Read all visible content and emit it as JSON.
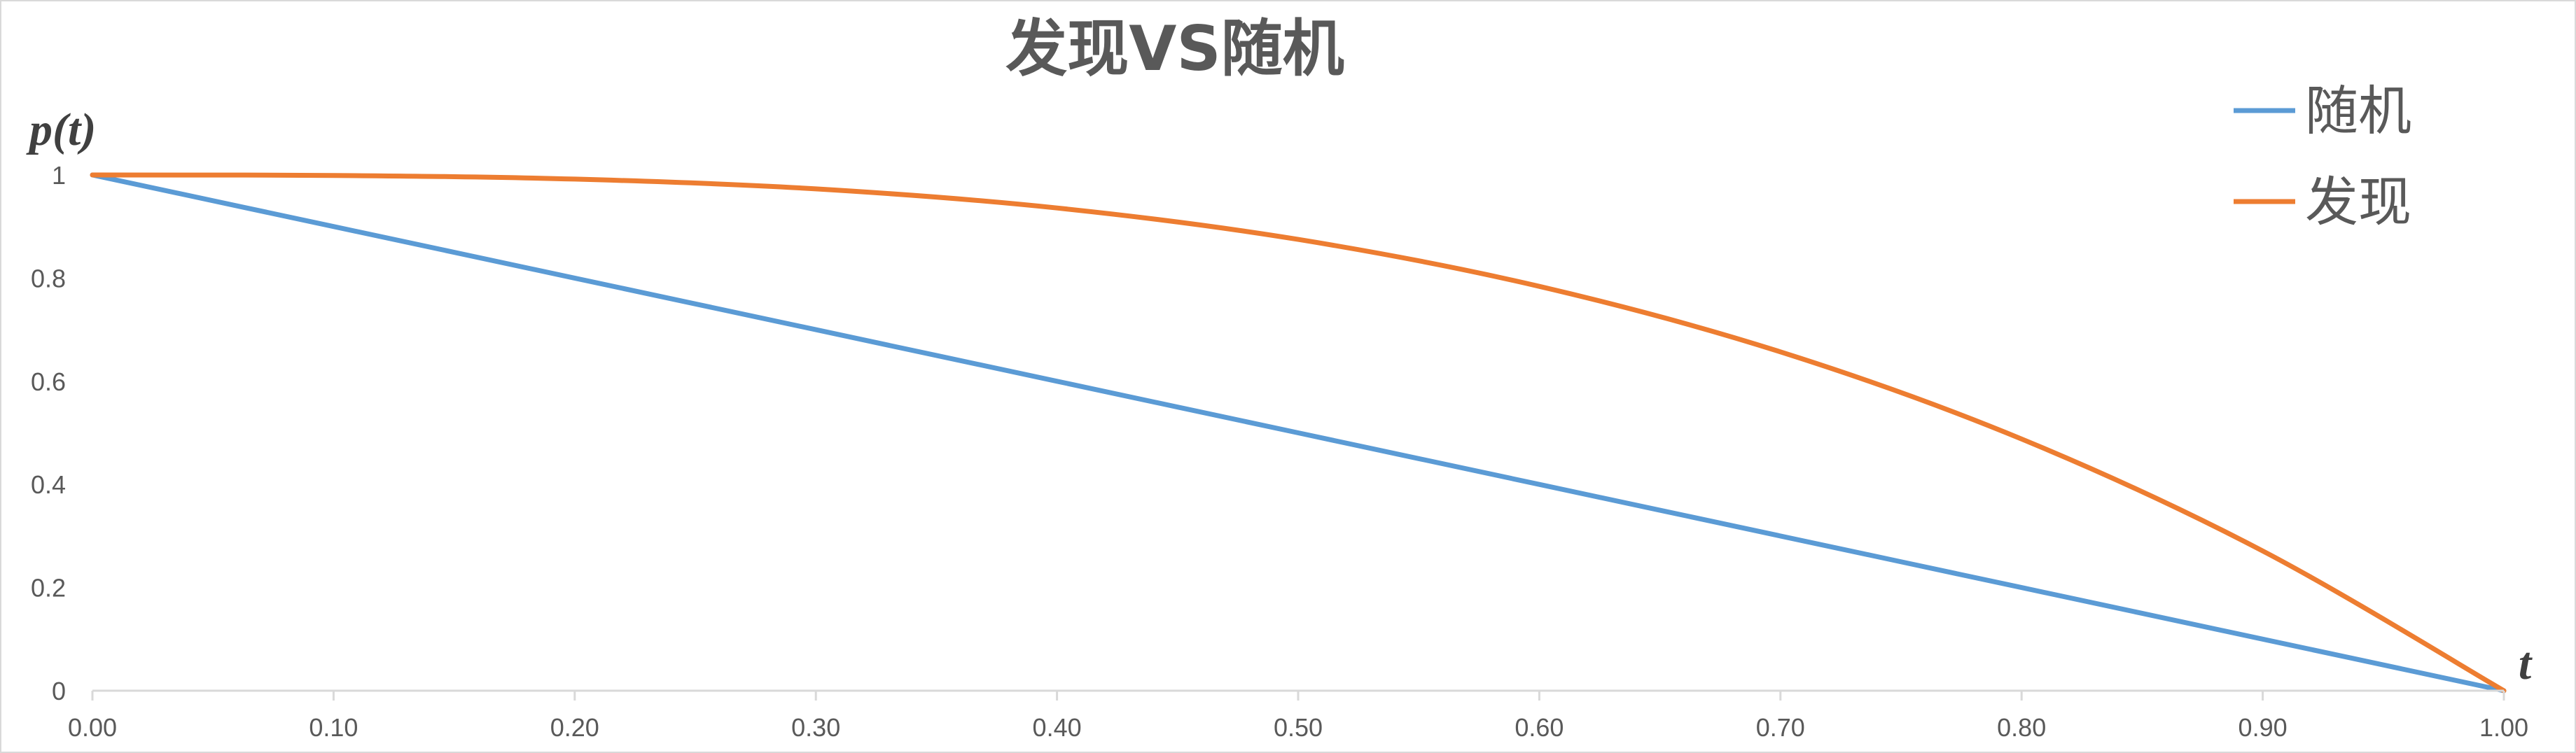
{
  "chart_data": {
    "type": "line",
    "title": "发现VS随机",
    "xlabel": "t",
    "ylabel": "p(t)",
    "xlim": [
      0,
      1
    ],
    "ylim": [
      0,
      1
    ],
    "x_ticks": [
      "0.00",
      "0.10",
      "0.20",
      "0.30",
      "0.40",
      "0.50",
      "0.60",
      "0.70",
      "0.80",
      "0.90",
      "1.00"
    ],
    "y_ticks": [
      "0",
      "0.2",
      "0.4",
      "0.6",
      "0.8",
      "1"
    ],
    "grid": false,
    "legend_position": "top-right",
    "x": [
      0.0,
      0.1,
      0.2,
      0.3,
      0.4,
      0.5,
      0.6,
      0.7,
      0.8,
      0.9,
      1.0
    ],
    "series": [
      {
        "name": "随机",
        "color": "#5b9bd5",
        "values": [
          1.0,
          0.9,
          0.8,
          0.7,
          0.6,
          0.5,
          0.4,
          0.3,
          0.2,
          0.1,
          0.0
        ]
      },
      {
        "name": "发现",
        "color": "#ed7d31",
        "values": [
          1.0,
          0.999,
          0.992,
          0.973,
          0.936,
          0.875,
          0.784,
          0.657,
          0.488,
          0.271,
          0.0
        ]
      }
    ]
  }
}
